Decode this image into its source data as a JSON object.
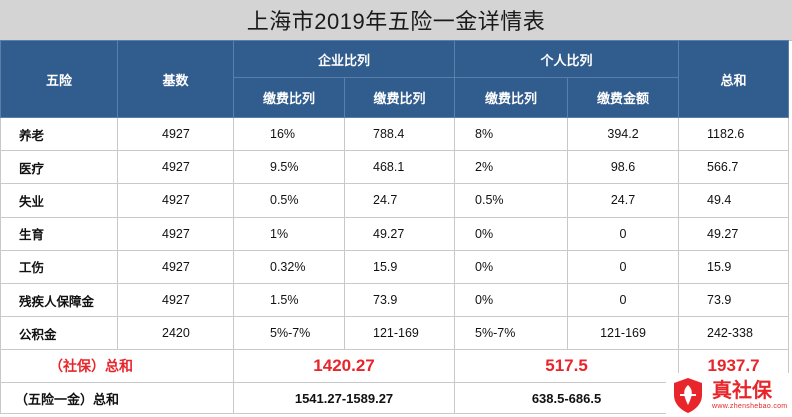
{
  "title": "上海市2019年五险一金详情表",
  "header": {
    "five": "五险",
    "base": "基数",
    "company": "企业比列",
    "personal": "个人比列",
    "total": "总和",
    "company_rate": "缴费比列",
    "company_amount": "缴费比列",
    "personal_rate": "缴费比列",
    "personal_amount": "缴费金额"
  },
  "rows": [
    {
      "name": "养老",
      "base": "4927",
      "c_rate": "16%",
      "c_amt": "788.4",
      "p_rate": "8%",
      "p_amt": "394.2",
      "total": "1182.6"
    },
    {
      "name": "医疗",
      "base": "4927",
      "c_rate": "9.5%",
      "c_amt": "468.1",
      "p_rate": "2%",
      "p_amt": "98.6",
      "total": "566.7"
    },
    {
      "name": "失业",
      "base": "4927",
      "c_rate": "0.5%",
      "c_amt": "24.7",
      "p_rate": "0.5%",
      "p_amt": "24.7",
      "total": "49.4"
    },
    {
      "name": "生育",
      "base": "4927",
      "c_rate": "1%",
      "c_amt": "49.27",
      "p_rate": "0%",
      "p_amt": "0",
      "total": "49.27"
    },
    {
      "name": "工伤",
      "base": "4927",
      "c_rate": "0.32%",
      "c_amt": "15.9",
      "p_rate": "0%",
      "p_amt": "0",
      "total": "15.9"
    },
    {
      "name": "残疾人保障金",
      "base": "4927",
      "c_rate": "1.5%",
      "c_amt": "73.9",
      "p_rate": "0%",
      "p_amt": "0",
      "total": "73.9"
    },
    {
      "name": "公积金",
      "base": "2420",
      "c_rate": "5%-7%",
      "c_amt": "121-169",
      "p_rate": "5%-7%",
      "p_amt": "121-169",
      "total": "242-338"
    }
  ],
  "social_sum": {
    "label": "（社保）总和",
    "company": "1420.27",
    "personal": "517.5",
    "total": "1937.7"
  },
  "all_sum": {
    "label": "（五险一金）总和",
    "company": "1541.27-1589.27",
    "personal": "638.5-686.5"
  },
  "watermark": {
    "main": "真社保",
    "sub": "www.zhenshebao.com",
    "color": "#e8252a"
  }
}
